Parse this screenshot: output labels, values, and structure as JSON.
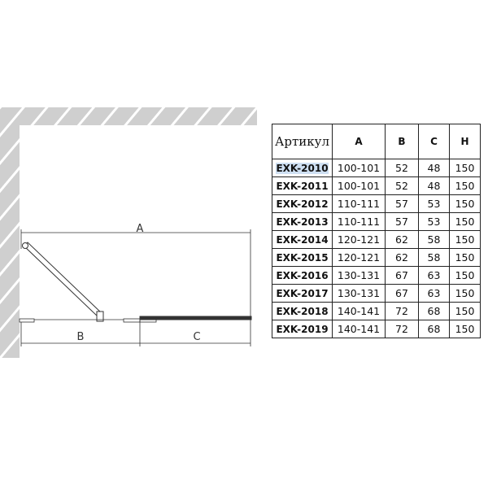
{
  "diagram": {
    "labels": {
      "a": "A",
      "b": "B",
      "c": "C"
    }
  },
  "table": {
    "headers": [
      "Артикул",
      "A",
      "B",
      "C",
      "H"
    ],
    "rows": [
      [
        "EXK-2010",
        "100-101",
        "52",
        "48",
        "150"
      ],
      [
        "EXK-2011",
        "100-101",
        "52",
        "48",
        "150"
      ],
      [
        "EXK-2012",
        "110-111",
        "57",
        "53",
        "150"
      ],
      [
        "EXK-2013",
        "110-111",
        "57",
        "53",
        "150"
      ],
      [
        "EXK-2014",
        "120-121",
        "62",
        "58",
        "150"
      ],
      [
        "EXK-2015",
        "120-121",
        "62",
        "58",
        "150"
      ],
      [
        "EXK-2016",
        "130-131",
        "67",
        "63",
        "150"
      ],
      [
        "EXK-2017",
        "130-131",
        "67",
        "63",
        "150"
      ],
      [
        "EXK-2018",
        "140-141",
        "72",
        "68",
        "150"
      ],
      [
        "EXK-2019",
        "140-141",
        "72",
        "68",
        "150"
      ]
    ],
    "highlight_color": "#cfe0f3"
  }
}
